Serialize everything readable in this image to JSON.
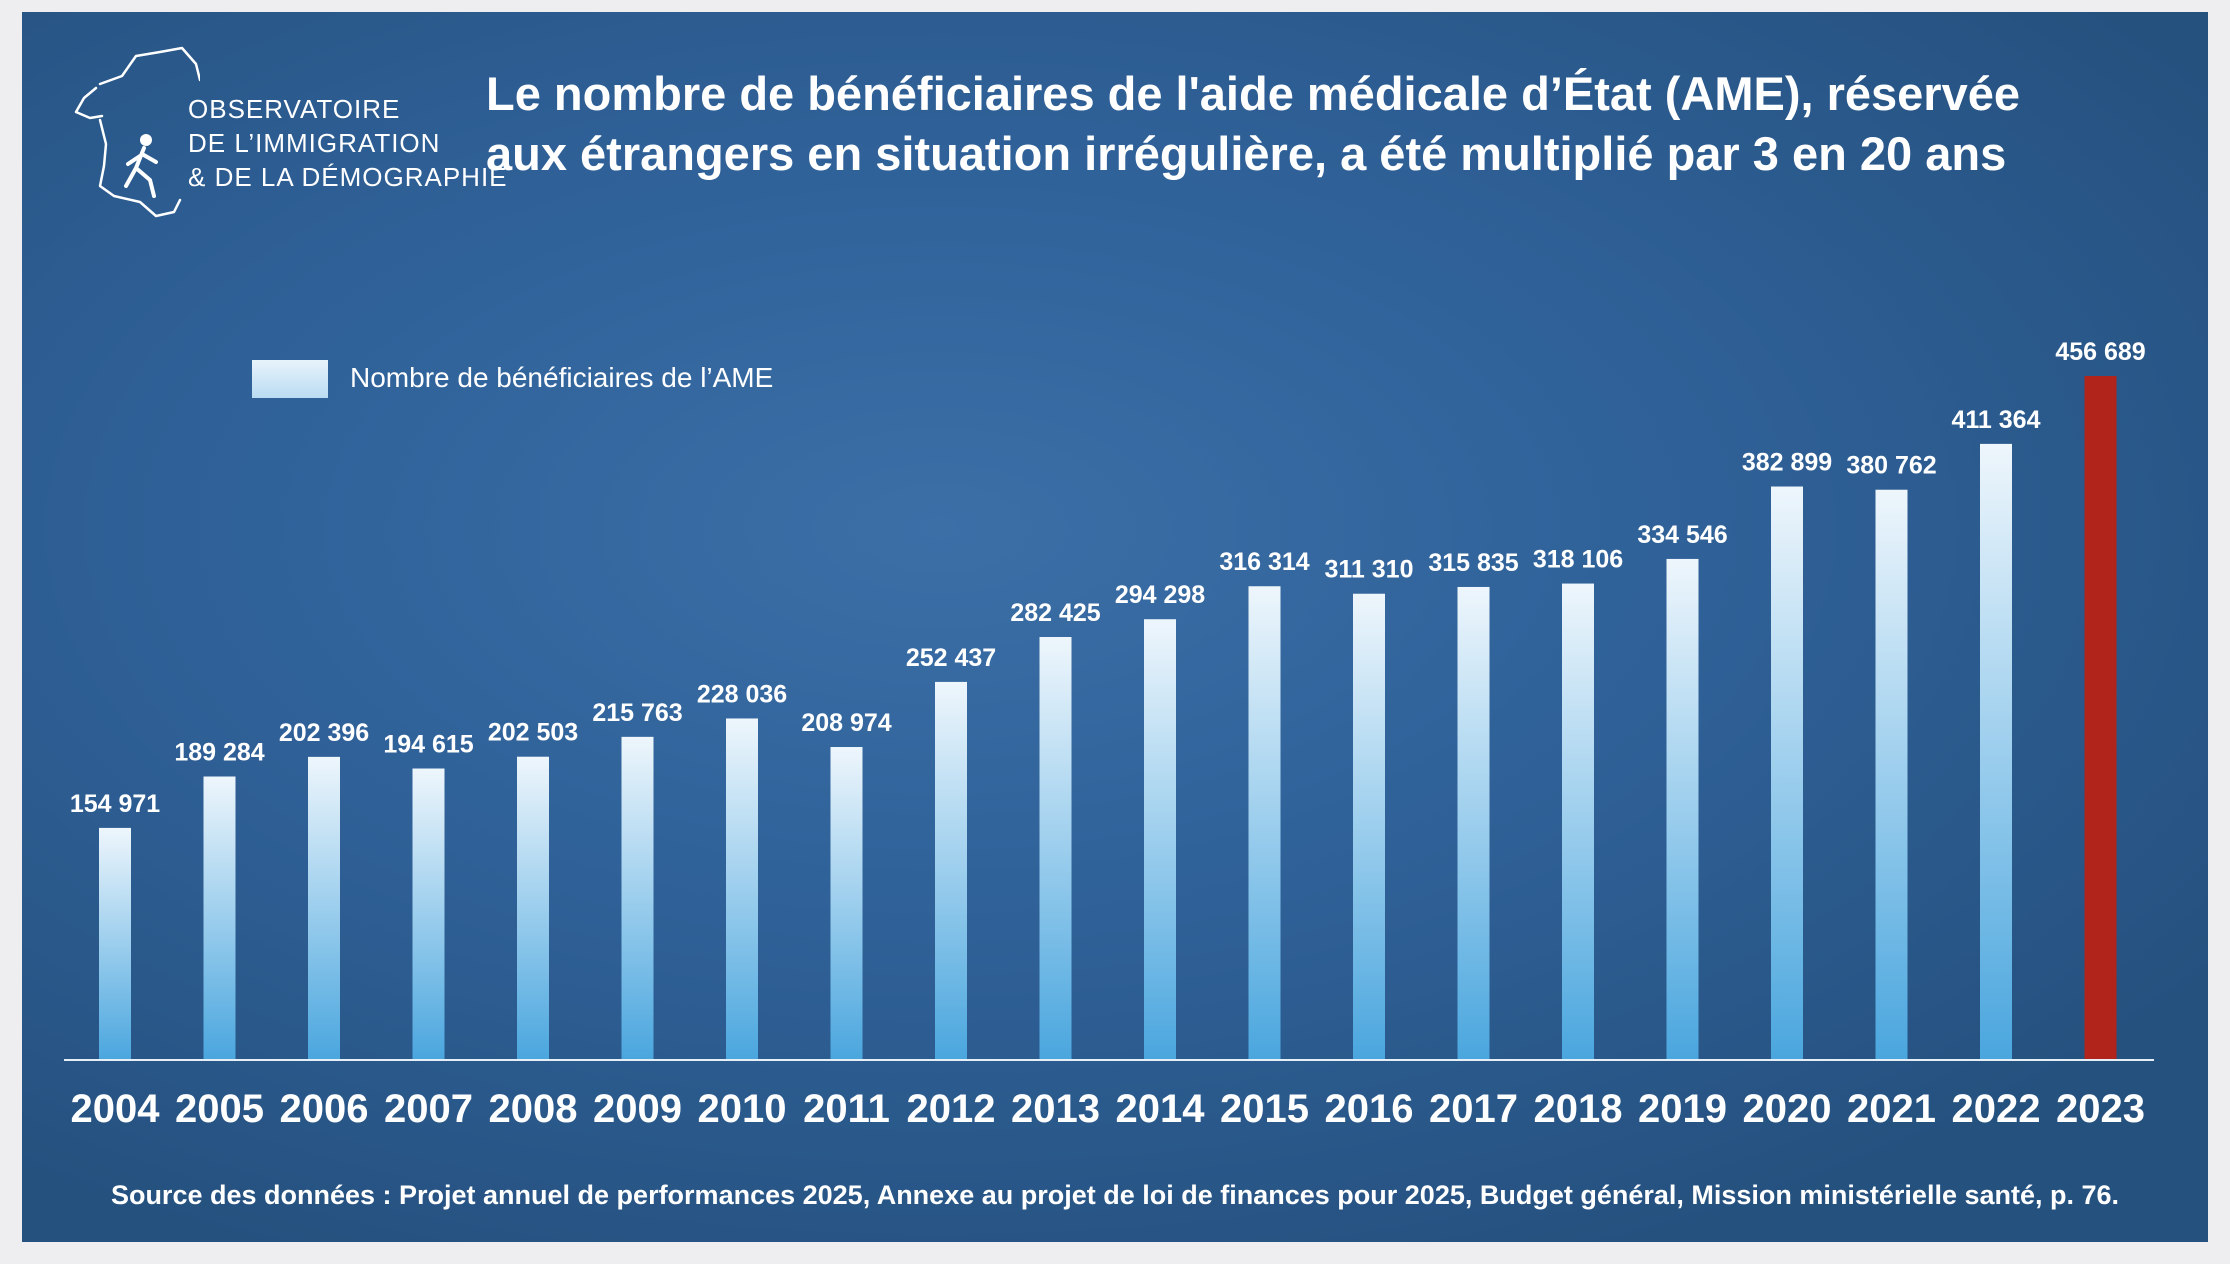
{
  "logo": {
    "line1": "OBSERVATOIRE",
    "line2": "DE L’IMMIGRATION",
    "line3": "& DE LA DÉMOGRAPHIE",
    "icon": "france-map-runner-icon"
  },
  "title": {
    "line1": "Le nombre de bénéficiaires de l'aide médicale d’État (AME), réservée",
    "line2": "aux étrangers en situation irrégulière, a été multiplié par 3 en 20 ans"
  },
  "source": "Source des données : Projet annuel de performances 2025, Annexe au projet de loi de finances pour 2025, Budget général, Mission ministérielle santé, p. 76.",
  "colors": {
    "background": "#30629a",
    "bar_top": "#eef6fc",
    "bar_bottom": "#4aa6de",
    "highlight": "#b0241b",
    "text": "#ffffff"
  },
  "chart_data": {
    "type": "bar",
    "title": "Le nombre de bénéficiaires de l'aide médicale d’État (AME), réservée aux étrangers en situation irrégulière, a été multiplié par 3 en 20 ans",
    "xlabel": "",
    "ylabel": "",
    "ylim": [
      0,
      500000
    ],
    "grid": false,
    "legend_position": "top-left",
    "highlight_category": "2023",
    "categories": [
      "2004",
      "2005",
      "2006",
      "2007",
      "2008",
      "2009",
      "2010",
      "2011",
      "2012",
      "2013",
      "2014",
      "2015",
      "2016",
      "2017",
      "2018",
      "2019",
      "2020",
      "2021",
      "2022",
      "2023"
    ],
    "series": [
      {
        "name": "Nombre de bénéficiaires de l’AME",
        "values": [
          154971,
          189284,
          202396,
          194615,
          202503,
          215763,
          228036,
          208974,
          252437,
          282425,
          294298,
          316314,
          311310,
          315835,
          318106,
          334546,
          382899,
          380762,
          411364,
          456689
        ],
        "value_labels": [
          "154 971",
          "189 284",
          "202 396",
          "194 615",
          "202 503",
          "215 763",
          "228 036",
          "208 974",
          "252 437",
          "282 425",
          "294 298",
          "316 314",
          "311 310",
          "315 835",
          "318 106",
          "334 546",
          "382 899",
          "380 762",
          "411 364",
          "456 689"
        ]
      }
    ]
  }
}
